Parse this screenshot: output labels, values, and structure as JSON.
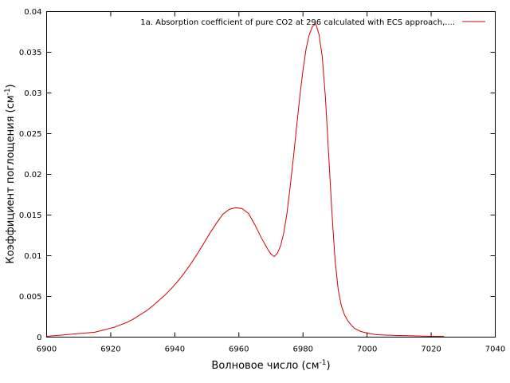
{
  "chart_data": {
    "type": "line",
    "title": "",
    "xlabel": "Волновое число (см",
    "xlabel_sup": "-1",
    "xlabel_end": ")",
    "ylabel": "Коэффициент поглощения (см",
    "ylabel_sup": "-1",
    "ylabel_end": ")",
    "xlim": [
      6900,
      7040
    ],
    "ylim": [
      0,
      0.04
    ],
    "x_ticks": [
      6900,
      6920,
      6940,
      6960,
      6980,
      7000,
      7020,
      7040
    ],
    "x_tick_labels": [
      "6900",
      "6920",
      "6940",
      "6960",
      "6980",
      "7000",
      "7020",
      "7040"
    ],
    "y_ticks": [
      0,
      0.005,
      0.01,
      0.015,
      0.02,
      0.025,
      0.03,
      0.035,
      0.04
    ],
    "y_tick_labels": [
      "0",
      "0.005",
      "0.01",
      "0.015",
      "0.02",
      "0.025",
      "0.03",
      "0.035",
      "0.04"
    ],
    "grid": false,
    "legend_position": "top-right",
    "colors": {
      "series": "#d40000",
      "axes": "#000000"
    },
    "series": [
      {
        "name": "1a. Absorption coefficient of pure CO2 at 296 calculated with ECS approach,....",
        "x": [
          6900,
          6903,
          6906,
          6909,
          6912,
          6915,
          6917,
          6919,
          6921,
          6923,
          6925,
          6927,
          6929,
          6931,
          6933,
          6935,
          6937,
          6939,
          6941,
          6943,
          6945,
          6947,
          6949,
          6951,
          6953,
          6955,
          6957,
          6959,
          6961,
          6963,
          6965,
          6967,
          6969,
          6970,
          6971,
          6972,
          6973,
          6974,
          6975,
          6976,
          6977,
          6978,
          6979,
          6980,
          6981,
          6982,
          6983,
          6984,
          6985,
          6986,
          6987,
          6988,
          6989,
          6990,
          6991,
          6992,
          6993,
          6994,
          6995,
          6996,
          6998,
          7000,
          7003,
          7006,
          7010,
          7015,
          7020,
          7024
        ],
        "y": [
          0.0001,
          0.0002,
          0.0003,
          0.0004,
          0.0005,
          0.0006,
          0.0008,
          0.001,
          0.0012,
          0.0015,
          0.0018,
          0.0022,
          0.0027,
          0.0032,
          0.0038,
          0.0045,
          0.0052,
          0.006,
          0.0069,
          0.0079,
          0.009,
          0.0102,
          0.0115,
          0.0128,
          0.014,
          0.0151,
          0.0157,
          0.0159,
          0.0158,
          0.0152,
          0.0138,
          0.0122,
          0.0108,
          0.0102,
          0.0099,
          0.0103,
          0.0112,
          0.0128,
          0.0152,
          0.0185,
          0.022,
          0.0258,
          0.0295,
          0.0328,
          0.0355,
          0.0372,
          0.0382,
          0.0385,
          0.0372,
          0.0345,
          0.0295,
          0.0225,
          0.0155,
          0.0095,
          0.0058,
          0.0038,
          0.0027,
          0.002,
          0.0015,
          0.0011,
          0.0007,
          0.0005,
          0.0003,
          0.00025,
          0.0002,
          0.00015,
          0.0001,
          8e-05
        ]
      }
    ]
  }
}
